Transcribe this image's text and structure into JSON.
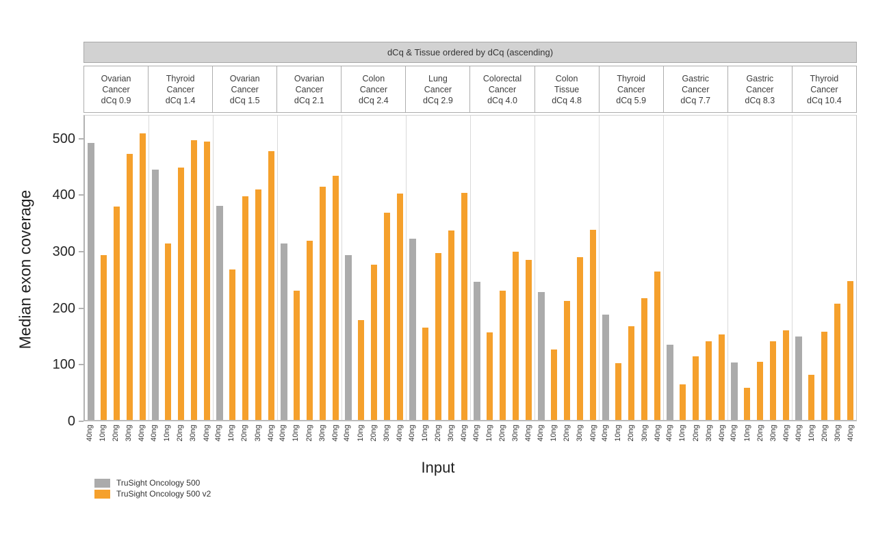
{
  "chart_data": {
    "type": "bar",
    "facet_title": "dCq & Tissue ordered by dCq (ascending)",
    "ylabel": "Median exon coverage",
    "xlabel": "Input",
    "y_ticks": [
      0,
      100,
      200,
      300,
      400,
      500
    ],
    "ylim": [
      0,
      540
    ],
    "grid": "off",
    "legend_position": "bottom-left",
    "input_levels": [
      "40ng",
      "10ng",
      "20ng",
      "30ng",
      "40ng"
    ],
    "series": [
      {
        "name": "TruSight Oncology 500",
        "color": "#ababab"
      },
      {
        "name": "TruSight Oncology 500 v2",
        "color": "#f5a02c"
      }
    ],
    "panels": [
      {
        "tissue": "Ovarian Cancer",
        "tissue_lines": [
          "Ovarian",
          "Cancer"
        ],
        "dcq": "dCq 0.9",
        "bars": [
          {
            "series": 0,
            "input": "40ng",
            "value": 490
          },
          {
            "series": 1,
            "input": "10ng",
            "value": 291
          },
          {
            "series": 1,
            "input": "20ng",
            "value": 377
          },
          {
            "series": 1,
            "input": "30ng",
            "value": 470
          },
          {
            "series": 1,
            "input": "40ng",
            "value": 507
          }
        ]
      },
      {
        "tissue": "Thyroid Cancer",
        "tissue_lines": [
          "Thyroid",
          "Cancer"
        ],
        "dcq": "dCq 1.4",
        "bars": [
          {
            "series": 0,
            "input": "40ng",
            "value": 443
          },
          {
            "series": 1,
            "input": "10ng",
            "value": 312
          },
          {
            "series": 1,
            "input": "20ng",
            "value": 446
          },
          {
            "series": 1,
            "input": "30ng",
            "value": 494
          },
          {
            "series": 1,
            "input": "40ng",
            "value": 492
          }
        ]
      },
      {
        "tissue": "Ovarian Cancer",
        "tissue_lines": [
          "Ovarian",
          "Cancer"
        ],
        "dcq": "dCq 1.5",
        "bars": [
          {
            "series": 0,
            "input": "40ng",
            "value": 379
          },
          {
            "series": 1,
            "input": "10ng",
            "value": 266
          },
          {
            "series": 1,
            "input": "20ng",
            "value": 395
          },
          {
            "series": 1,
            "input": "30ng",
            "value": 407
          },
          {
            "series": 1,
            "input": "40ng",
            "value": 475
          }
        ]
      },
      {
        "tissue": "Ovarian Cancer",
        "tissue_lines": [
          "Ovarian",
          "Cancer"
        ],
        "dcq": "dCq 2.1",
        "bars": [
          {
            "series": 0,
            "input": "40ng",
            "value": 312
          },
          {
            "series": 1,
            "input": "10ng",
            "value": 229
          },
          {
            "series": 1,
            "input": "20ng",
            "value": 317
          },
          {
            "series": 1,
            "input": "30ng",
            "value": 412
          },
          {
            "series": 1,
            "input": "40ng",
            "value": 432
          }
        ]
      },
      {
        "tissue": "Colon Cancer",
        "tissue_lines": [
          "Colon",
          "Cancer"
        ],
        "dcq": "dCq 2.4",
        "bars": [
          {
            "series": 0,
            "input": "40ng",
            "value": 292
          },
          {
            "series": 1,
            "input": "10ng",
            "value": 177
          },
          {
            "series": 1,
            "input": "20ng",
            "value": 275
          },
          {
            "series": 1,
            "input": "30ng",
            "value": 366
          },
          {
            "series": 1,
            "input": "40ng",
            "value": 400
          }
        ]
      },
      {
        "tissue": "Lung Cancer",
        "tissue_lines": [
          "Lung",
          "Cancer"
        ],
        "dcq": "dCq 2.9",
        "bars": [
          {
            "series": 0,
            "input": "40ng",
            "value": 320
          },
          {
            "series": 1,
            "input": "10ng",
            "value": 163
          },
          {
            "series": 1,
            "input": "20ng",
            "value": 295
          },
          {
            "series": 1,
            "input": "30ng",
            "value": 335
          },
          {
            "series": 1,
            "input": "40ng",
            "value": 402
          }
        ]
      },
      {
        "tissue": "Colorectal Cancer",
        "tissue_lines": [
          "Colorectal",
          "Cancer"
        ],
        "dcq": "dCq 4.0",
        "bars": [
          {
            "series": 0,
            "input": "40ng",
            "value": 244
          },
          {
            "series": 1,
            "input": "10ng",
            "value": 155
          },
          {
            "series": 1,
            "input": "20ng",
            "value": 229
          },
          {
            "series": 1,
            "input": "30ng",
            "value": 298
          },
          {
            "series": 1,
            "input": "40ng",
            "value": 283
          }
        ]
      },
      {
        "tissue": "Colon Tissue",
        "tissue_lines": [
          "Colon",
          "Tissue"
        ],
        "dcq": "dCq 4.8",
        "bars": [
          {
            "series": 0,
            "input": "40ng",
            "value": 226
          },
          {
            "series": 1,
            "input": "10ng",
            "value": 125
          },
          {
            "series": 1,
            "input": "20ng",
            "value": 210
          },
          {
            "series": 1,
            "input": "30ng",
            "value": 288
          },
          {
            "series": 1,
            "input": "40ng",
            "value": 336
          }
        ]
      },
      {
        "tissue": "Thyroid Cancer",
        "tissue_lines": [
          "Thyroid",
          "Cancer"
        ],
        "dcq": "dCq 5.9",
        "bars": [
          {
            "series": 0,
            "input": "40ng",
            "value": 186
          },
          {
            "series": 1,
            "input": "10ng",
            "value": 100
          },
          {
            "series": 1,
            "input": "20ng",
            "value": 166
          },
          {
            "series": 1,
            "input": "30ng",
            "value": 215
          },
          {
            "series": 1,
            "input": "40ng",
            "value": 262
          }
        ]
      },
      {
        "tissue": "Gastric Cancer",
        "tissue_lines": [
          "Gastric",
          "Cancer"
        ],
        "dcq": "dCq 7.7",
        "bars": [
          {
            "series": 0,
            "input": "40ng",
            "value": 133
          },
          {
            "series": 1,
            "input": "10ng",
            "value": 63
          },
          {
            "series": 1,
            "input": "20ng",
            "value": 113
          },
          {
            "series": 1,
            "input": "30ng",
            "value": 139
          },
          {
            "series": 1,
            "input": "40ng",
            "value": 151
          }
        ]
      },
      {
        "tissue": "Gastric Cancer",
        "tissue_lines": [
          "Gastric",
          "Cancer"
        ],
        "dcq": "dCq 8.3",
        "bars": [
          {
            "series": 0,
            "input": "40ng",
            "value": 101
          },
          {
            "series": 1,
            "input": "10ng",
            "value": 57
          },
          {
            "series": 1,
            "input": "20ng",
            "value": 103
          },
          {
            "series": 1,
            "input": "30ng",
            "value": 139
          },
          {
            "series": 1,
            "input": "40ng",
            "value": 158
          }
        ]
      },
      {
        "tissue": "Thyroid Cancer",
        "tissue_lines": [
          "Thyroid",
          "Cancer"
        ],
        "dcq": "dCq 10.4",
        "bars": [
          {
            "series": 0,
            "input": "40ng",
            "value": 148
          },
          {
            "series": 1,
            "input": "10ng",
            "value": 80
          },
          {
            "series": 1,
            "input": "20ng",
            "value": 156
          },
          {
            "series": 1,
            "input": "30ng",
            "value": 206
          },
          {
            "series": 1,
            "input": "40ng",
            "value": 245
          }
        ]
      }
    ]
  }
}
